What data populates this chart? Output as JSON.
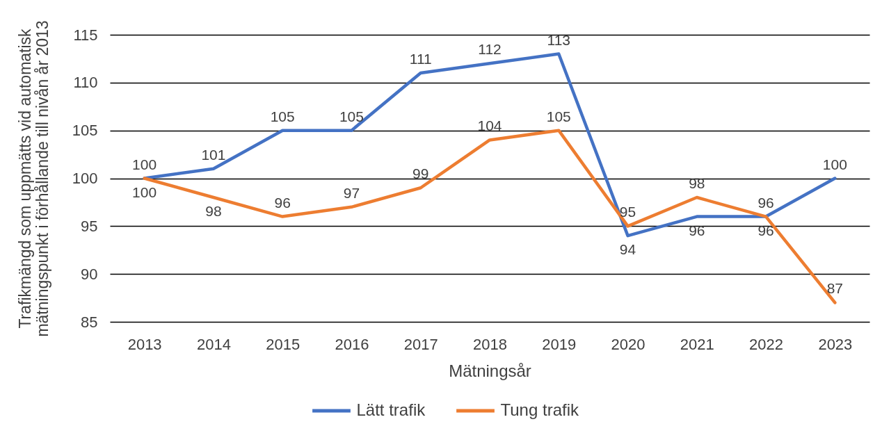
{
  "chart_data": {
    "type": "line",
    "xlabel": "Mätningsår",
    "ylabel": "Trafikmängd som uppmätts vid automatisk\nmätningspunkt i förhållande till nivån år 2013",
    "categories": [
      "2013",
      "2014",
      "2015",
      "2016",
      "2017",
      "2018",
      "2019",
      "2020",
      "2021",
      "2022",
      "2023"
    ],
    "series": [
      {
        "name": "Lätt trafik",
        "color": "#4472c4",
        "values": [
          100,
          101,
          105,
          105,
          111,
          112,
          113,
          94,
          96,
          96,
          100
        ]
      },
      {
        "name": "Tung trafik",
        "color": "#ed7d31",
        "values": [
          100,
          98,
          96,
          97,
          99,
          104,
          105,
          95,
          98,
          96,
          87
        ]
      }
    ],
    "ylim": [
      85,
      115
    ],
    "yticks": [
      85,
      90,
      95,
      100,
      105,
      110,
      115
    ],
    "grid": "y",
    "legend": "bottom",
    "data_labels": true,
    "marker": "none",
    "line_style": "solid"
  }
}
